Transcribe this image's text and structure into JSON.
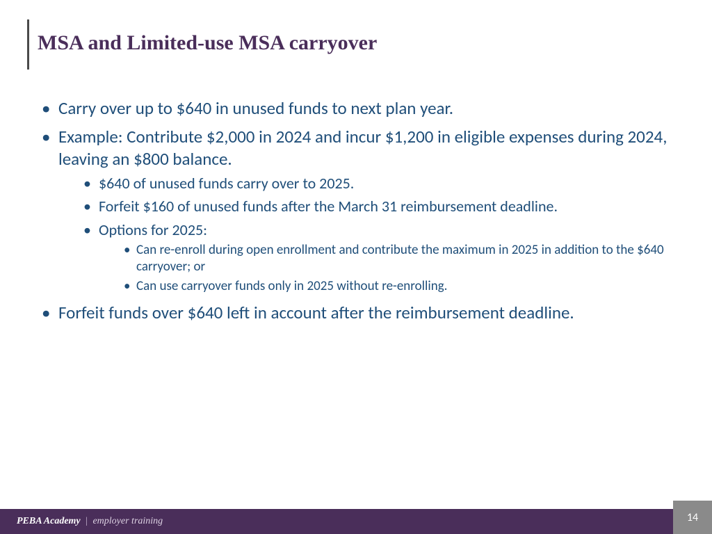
{
  "colors": {
    "title_color": "#4a2e5a",
    "body_text_color": "#1f4e79",
    "footer_bg": "#4a2e5a",
    "page_box_bg": "#8a8a8a",
    "title_bar": "#4a4a4a",
    "background": "#ffffff"
  },
  "typography": {
    "title_font": "Georgia serif",
    "title_size_pt": 30,
    "body_font": "Calibri",
    "lvl1_size_pt": 25,
    "lvl2_size_pt": 22,
    "lvl3_size_pt": 19
  },
  "title": "MSA and Limited-use MSA carryover",
  "bullets": {
    "b1": "Carry over up to $640 in unused funds to next plan year.",
    "b2": "Example: Contribute $2,000 in 2024 and incur $1,200 in eligible expenses during 2024, leaving an $800 balance.",
    "b2_1": "$640 of unused funds carry over to 2025.",
    "b2_2": "Forfeit $160 of unused funds after the March 31 reimbursement deadline.",
    "b2_3": "Options for 2025:",
    "b2_3_1": "Can re-enroll during open enrollment and contribute the maximum in 2025 in addition to the $640 carryover; or",
    "b2_3_2": "Can use carryover funds only in 2025 without re-enrolling.",
    "b3": "Forfeit funds over $640 left in account after the reimbursement deadline."
  },
  "footer": {
    "brand": "PEBA Academy",
    "separator": "|",
    "subtitle": "employer training"
  },
  "page_number": "14"
}
